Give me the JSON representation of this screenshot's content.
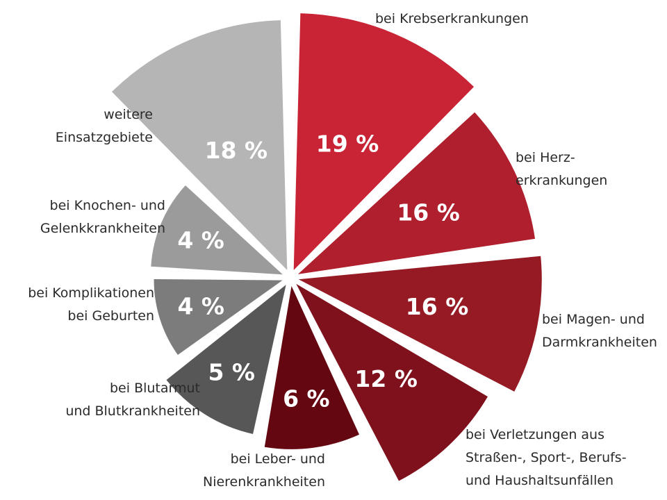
{
  "chart_data": {
    "type": "pie",
    "title": "",
    "style": "polar-area",
    "unit": "%",
    "slices": [
      {
        "id": "krebs",
        "value": 19,
        "value_label": "19 %",
        "label_lines": [
          "bei Krebserkrankungen"
        ],
        "color": "#c92436"
      },
      {
        "id": "herz",
        "value": 16,
        "value_label": "16 %",
        "label_lines": [
          "bei Herz-",
          "erkrankungen"
        ],
        "color": "#b01f2d"
      },
      {
        "id": "magen",
        "value": 16,
        "value_label": "16 %",
        "label_lines": [
          "bei Magen- und",
          "Darmkrankheiten"
        ],
        "color": "#951a24"
      },
      {
        "id": "verletzungen",
        "value": 12,
        "value_label": "12 %",
        "label_lines": [
          "bei Verletzungen aus",
          "Straßen-, Sport-, Berufs-",
          "und Haushaltsunfällen"
        ],
        "color": "#7e111b"
      },
      {
        "id": "leber",
        "value": 6,
        "value_label": "6 %",
        "label_lines": [
          "bei Leber- und",
          "Nierenkrankheiten"
        ],
        "color": "#650711"
      },
      {
        "id": "blut",
        "value": 5,
        "value_label": "5 %",
        "label_lines": [
          "bei Blutarmut",
          "und Blutkrankheiten"
        ],
        "color": "#575757"
      },
      {
        "id": "geburten",
        "value": 4,
        "value_label": "4 %",
        "label_lines": [
          "bei Komplikationen",
          "bei Geburten"
        ],
        "color": "#7c7c7c"
      },
      {
        "id": "knochen",
        "value": 4,
        "value_label": "4 %",
        "label_lines": [
          "bei Knochen- und",
          "Gelenkkrankheiten"
        ],
        "color": "#9b9b9b"
      },
      {
        "id": "weitere",
        "value": 18,
        "value_label": "18 %",
        "label_lines": [
          "weitere",
          "Einsatzgebiete"
        ],
        "color": "#b5b5b6"
      }
    ]
  }
}
